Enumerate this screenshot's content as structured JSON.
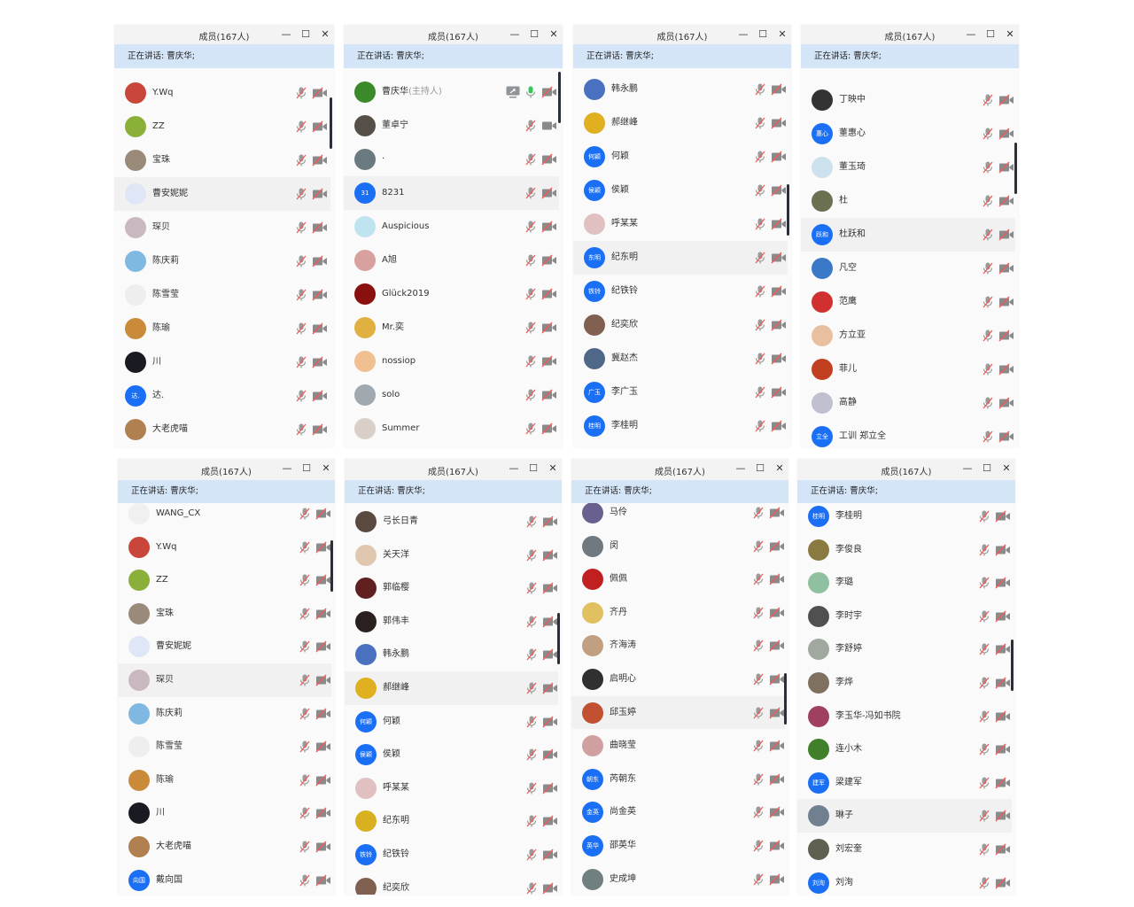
{
  "window_title": "成员(167人)",
  "controls": {
    "minimize": "—",
    "maximize": "☐",
    "close": "✕"
  },
  "speaking_text": "正在讲话: 曹庆华;",
  "host_tag": "(主持人)",
  "colors": {
    "accent_blue": "#1a6ff5",
    "speaking_bar": "#d4e5f8",
    "muted_slash": "#f05a5a",
    "mic_on": "#34c759"
  },
  "panels": [
    {
      "scroll_fraction": 0.08,
      "members": [
        {
          "name": "Y.Wq",
          "avatar_color": "#c8463a"
        },
        {
          "name": "ZZ",
          "avatar_color": "#8ab03a"
        },
        {
          "name": "宝珠",
          "avatar_color": "#9a8a7a"
        },
        {
          "name": "曹安妮妮",
          "avatar_color": "#dfe6f5",
          "highlighted": true
        },
        {
          "name": "琛贝",
          "avatar_color": "#c9b8c0"
        },
        {
          "name": "陈庆莉",
          "avatar_color": "#7fb8e0"
        },
        {
          "name": "陈雪莹",
          "avatar_color": "#eeeeee"
        },
        {
          "name": "陈瑜",
          "avatar_color": "#c98a3a"
        },
        {
          "name": "川",
          "avatar_color": "#1a1a22"
        },
        {
          "name": "达.",
          "avatar_initials": "达."
        },
        {
          "name": "大老虎喵",
          "avatar_color": "#b08050"
        }
      ]
    },
    {
      "scroll_fraction": 0.0,
      "members": [
        {
          "name": "曹庆华",
          "is_host": true,
          "sharing": true,
          "mic": "on",
          "avatar_color": "#3a8a2a"
        },
        {
          "name": "董卓宁",
          "camera": "on",
          "avatar_color": "#554f48"
        },
        {
          "name": "·",
          "avatar_color": "#6a7a80"
        },
        {
          "name": "8231",
          "avatar_initials": "31",
          "highlighted": true
        },
        {
          "name": "Auspicious",
          "avatar_color": "#bfe3ef"
        },
        {
          "name": "A旭",
          "avatar_color": "#d9a0a0"
        },
        {
          "name": "Glück2019",
          "avatar_color": "#8a1010"
        },
        {
          "name": "Mr.奕",
          "avatar_color": "#e0b040"
        },
        {
          "name": "nossiop",
          "avatar_color": "#f0c090"
        },
        {
          "name": "solo",
          "avatar_color": "#a0a8b0"
        },
        {
          "name": "Summer",
          "avatar_color": "#d8d0c8"
        }
      ]
    },
    {
      "scroll_fraction": 0.35,
      "members": [
        {
          "name": "韩永鹏",
          "avatar_color": "#4a70c0"
        },
        {
          "name": "郝继峰",
          "avatar_color": "#e0b020"
        },
        {
          "name": "何颖",
          "avatar_initials": "何颖"
        },
        {
          "name": "侯颖",
          "avatar_initials": "侯颖"
        },
        {
          "name": "呼某某",
          "avatar_color": "#e0c0c0"
        },
        {
          "name": "纪东明",
          "avatar_initials": "东明",
          "highlighted": true
        },
        {
          "name": "纪铁铃",
          "avatar_initials": "铁铃"
        },
        {
          "name": "纪奕欣",
          "avatar_color": "#806050"
        },
        {
          "name": "冀赵杰",
          "avatar_color": "#506888"
        },
        {
          "name": "李广玉",
          "avatar_initials": "广玉"
        },
        {
          "name": "李桂明",
          "avatar_initials": "桂明"
        }
      ]
    },
    {
      "scroll_fraction": 0.22,
      "members": [
        {
          "name": "丁映中",
          "avatar_color": "#333333"
        },
        {
          "name": "董惠心",
          "avatar_initials": "惠心"
        },
        {
          "name": "董玉琦",
          "avatar_color": "#cce0ee"
        },
        {
          "name": "杜",
          "avatar_color": "#6a7050"
        },
        {
          "name": "杜跃和",
          "avatar_initials": "跃和",
          "highlighted": true
        },
        {
          "name": "凡空",
          "avatar_color": "#3a78c8"
        },
        {
          "name": "范鹰",
          "avatar_color": "#d03030"
        },
        {
          "name": "方立亚",
          "avatar_color": "#e8c0a0"
        },
        {
          "name": "菲儿",
          "avatar_color": "#c04020"
        },
        {
          "name": "高静",
          "avatar_color": "#c0c0d0"
        },
        {
          "name": "工训 郑立全",
          "avatar_initials": "立全"
        }
      ]
    },
    {
      "scroll_fraction": 0.1,
      "members": [
        {
          "name": "WANG_CX",
          "avatar_color": "#f0f0f0"
        },
        {
          "name": "Y.Wq",
          "avatar_color": "#c8463a"
        },
        {
          "name": "ZZ",
          "avatar_color": "#8ab03a"
        },
        {
          "name": "宝珠",
          "avatar_color": "#9a8a7a"
        },
        {
          "name": "曹安妮妮",
          "avatar_color": "#dfe6f5"
        },
        {
          "name": "琛贝",
          "avatar_color": "#c9b8c0",
          "highlighted": true
        },
        {
          "name": "陈庆莉",
          "avatar_color": "#7fb8e0"
        },
        {
          "name": "陈雪莹",
          "avatar_color": "#eeeeee"
        },
        {
          "name": "陈瑜",
          "avatar_color": "#c98a3a"
        },
        {
          "name": "川",
          "avatar_color": "#1a1a22"
        },
        {
          "name": "大老虎喵",
          "avatar_color": "#b08050"
        },
        {
          "name": "戴向国",
          "avatar_initials": "向国"
        }
      ]
    },
    {
      "scroll_fraction": 0.32,
      "members": [
        {
          "name": "弓长日青",
          "avatar_color": "#5a4a40"
        },
        {
          "name": "关天洋",
          "avatar_color": "#e0c8b0"
        },
        {
          "name": "郭临樱",
          "avatar_color": "#602020"
        },
        {
          "name": "郭伟丰",
          "avatar_color": "#2a2020"
        },
        {
          "name": "韩永鹏",
          "avatar_color": "#4a70c0"
        },
        {
          "name": "郝继峰",
          "avatar_color": "#e0b020",
          "highlighted": true
        },
        {
          "name": "何颖",
          "avatar_initials": "何颖"
        },
        {
          "name": "侯颖",
          "avatar_initials": "侯颖"
        },
        {
          "name": "呼某某",
          "avatar_color": "#e0c0c0"
        },
        {
          "name": "纪东明",
          "avatar_color": "#d8b020"
        },
        {
          "name": "纪铁铃",
          "avatar_initials": "铁铃"
        },
        {
          "name": "纪奕欣",
          "avatar_color": "#806050"
        }
      ]
    },
    {
      "scroll_fraction": 0.5,
      "members": [
        {
          "name": "马伶",
          "avatar_color": "#6a6090"
        },
        {
          "name": "闵",
          "avatar_color": "#707880"
        },
        {
          "name": "佩佩",
          "avatar_color": "#c02020"
        },
        {
          "name": "齐丹",
          "avatar_color": "#e0c060"
        },
        {
          "name": "齐海涛",
          "avatar_color": "#c0a080"
        },
        {
          "name": "启明心",
          "avatar_color": "#303030"
        },
        {
          "name": "邱玉婷",
          "avatar_color": "#c05030",
          "highlighted": true
        },
        {
          "name": "曲晓莹",
          "avatar_color": "#d0a0a0"
        },
        {
          "name": "芮朝东",
          "avatar_initials": "朝东"
        },
        {
          "name": "尚金英",
          "avatar_initials": "金英"
        },
        {
          "name": "邵英华",
          "avatar_initials": "英华"
        },
        {
          "name": "史成坤",
          "avatar_color": "#708080"
        }
      ]
    },
    {
      "scroll_fraction": 0.4,
      "members": [
        {
          "name": "李桂明",
          "avatar_initials": "桂明"
        },
        {
          "name": "李俊良",
          "avatar_color": "#8a7a40"
        },
        {
          "name": "李璐",
          "avatar_color": "#8fc0a0"
        },
        {
          "name": "李时宇",
          "avatar_color": "#505050"
        },
        {
          "name": "李舒婷",
          "avatar_color": "#a0a8a0"
        },
        {
          "name": "李烨",
          "avatar_color": "#807060"
        },
        {
          "name": "李玉华-冯如书院",
          "avatar_color": "#a04060"
        },
        {
          "name": "连小木",
          "avatar_color": "#40802a"
        },
        {
          "name": "梁建军",
          "avatar_initials": "建军"
        },
        {
          "name": "琳子",
          "avatar_color": "#708090",
          "highlighted": true
        },
        {
          "name": "刘宏奎",
          "avatar_color": "#606050"
        },
        {
          "name": "刘洵",
          "avatar_initials": "刘洵"
        }
      ]
    }
  ]
}
